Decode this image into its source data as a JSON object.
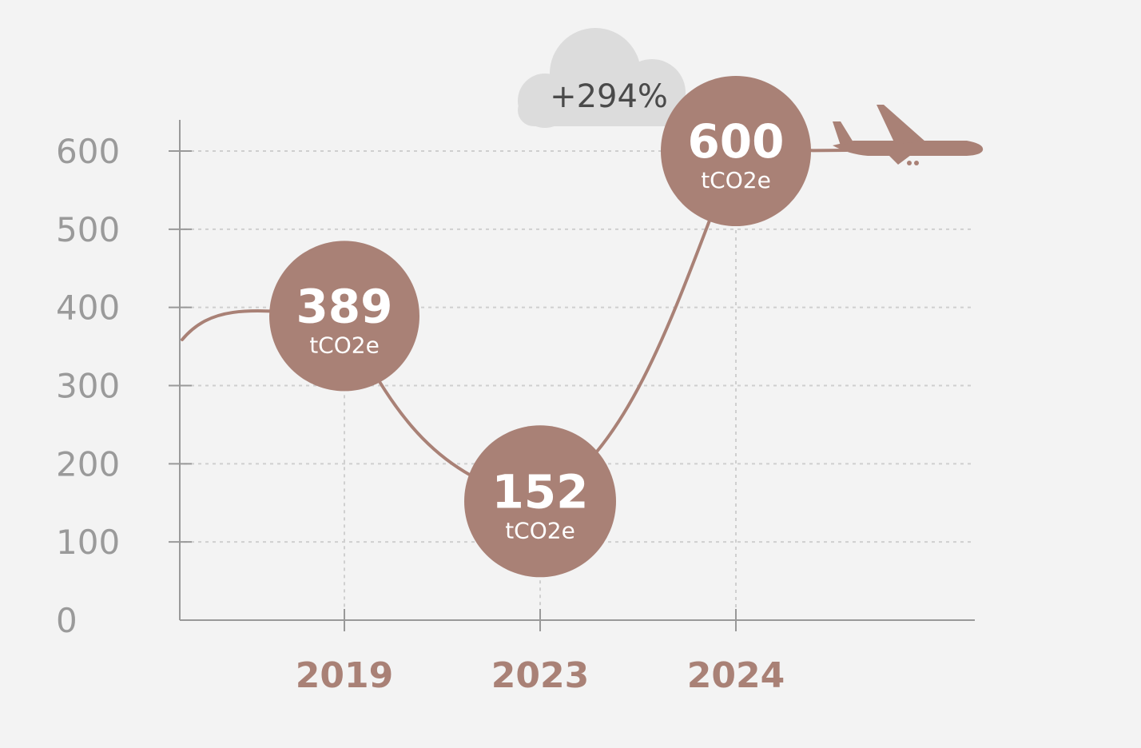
{
  "colors": {
    "accent": "#a98176",
    "axis": "#999999",
    "grid": "#cfcfcf",
    "cloud": "#dcdcdc",
    "background": "#f3f3f3"
  },
  "chart_data": {
    "type": "line",
    "title": "",
    "xlabel": "",
    "ylabel": "",
    "ylim": [
      0,
      600
    ],
    "yticks": [
      "0",
      "100",
      "200",
      "300",
      "400",
      "500",
      "600"
    ],
    "categories": [
      "2019",
      "2023",
      "2024"
    ],
    "values": [
      389,
      152,
      600
    ],
    "point_labels": [
      "389",
      "152",
      "600"
    ],
    "unit": "tCO2e",
    "grid": true,
    "annotation": "+294%",
    "icons": [
      "cloud-icon",
      "airplane-icon"
    ]
  }
}
